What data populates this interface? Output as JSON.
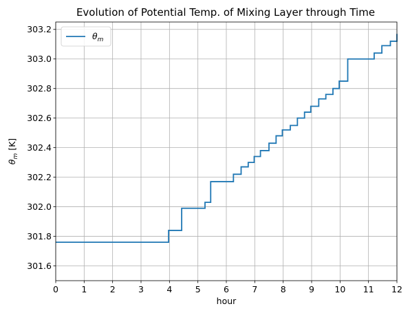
{
  "chart_data": {
    "type": "line",
    "step": "post",
    "title": "Evolution of Potential Temp. of Mixing Layer through Time",
    "xlabel": "hour",
    "ylabel": "θ",
    "ylabel_sub": "m",
    "ylabel_unit": " [K]",
    "xlim": [
      0,
      12
    ],
    "ylim": [
      301.5,
      303.25
    ],
    "xticks": [
      0,
      1,
      2,
      3,
      4,
      5,
      6,
      7,
      8,
      9,
      10,
      11,
      12
    ],
    "xtick_labels": [
      "0",
      "1",
      "2",
      "3",
      "4",
      "5",
      "6",
      "7",
      "8",
      "9",
      "10",
      "11",
      "12"
    ],
    "yticks": [
      301.6,
      301.8,
      302.0,
      302.2,
      302.4,
      302.6,
      302.8,
      303.0,
      303.2
    ],
    "ytick_labels": [
      "301.6",
      "301.8",
      "302.0",
      "302.2",
      "302.4",
      "302.6",
      "302.8",
      "303.0",
      "303.2"
    ],
    "grid": true,
    "legend": {
      "position": "top-left",
      "entries": [
        {
          "symbol": "θ",
          "sub": "m"
        }
      ]
    },
    "series": [
      {
        "color": "#1f77b4",
        "x": [
          0,
          3.97,
          4.43,
          5.25,
          5.45,
          6.25,
          6.52,
          6.77,
          6.98,
          7.2,
          7.5,
          7.75,
          7.97,
          8.25,
          8.5,
          8.75,
          8.97,
          9.25,
          9.5,
          9.75,
          9.97,
          10.27,
          11.2,
          11.47,
          11.77,
          12
        ],
        "y": [
          301.76,
          301.84,
          301.99,
          302.03,
          302.17,
          302.22,
          302.27,
          302.3,
          302.34,
          302.38,
          302.43,
          302.48,
          302.52,
          302.55,
          302.6,
          302.64,
          302.68,
          302.73,
          302.76,
          302.8,
          302.85,
          303.0,
          303.04,
          303.09,
          303.12,
          303.17
        ]
      }
    ]
  }
}
